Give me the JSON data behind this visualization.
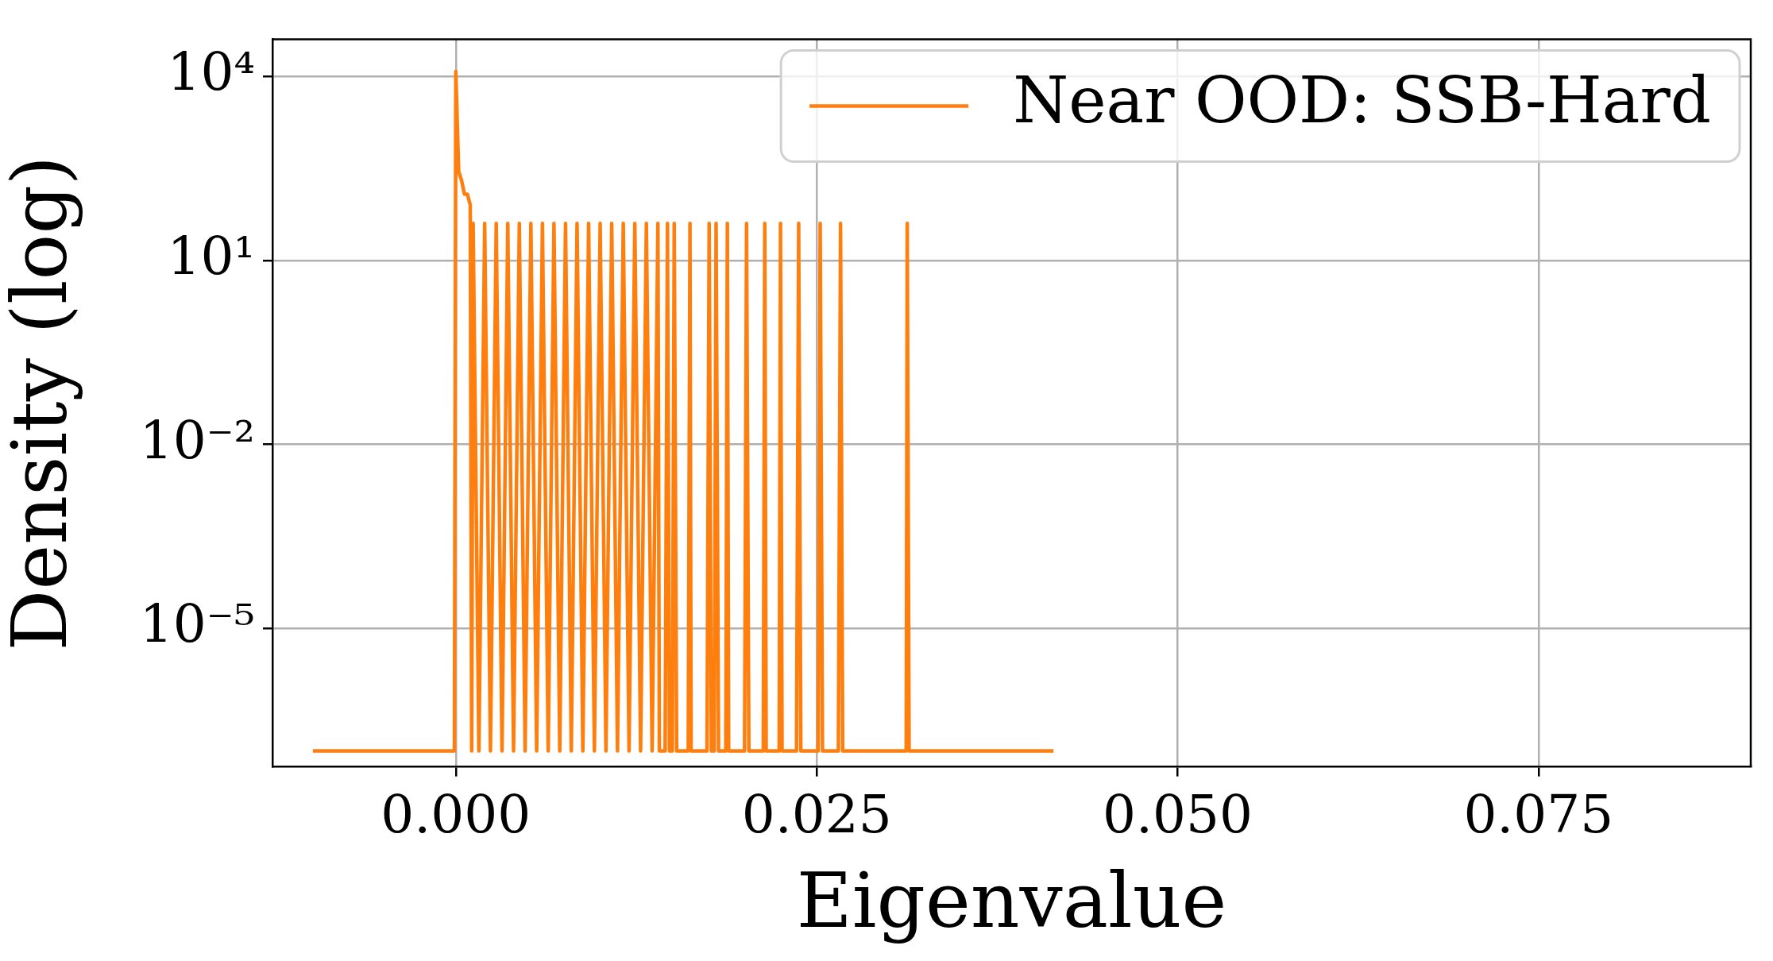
{
  "chart_data": {
    "type": "line",
    "xlabel": "Eigenvalue",
    "ylabel": "Density (log)",
    "log": true,
    "grid": true,
    "legend": "top right",
    "marker": "none",
    "line_style": "solid",
    "xlim": [
      -0.0127,
      0.0897
    ],
    "ylim": [
      5.5e-08,
      40000
    ],
    "xticks": [
      {
        "value": 0,
        "label": "0.000"
      },
      {
        "value": 0.025,
        "label": "0.025"
      },
      {
        "value": 0.05,
        "label": "0.050"
      },
      {
        "value": 0.075,
        "label": "0.075"
      }
    ],
    "yticks": [
      {
        "value": 1e-05,
        "label": "10⁻⁵"
      },
      {
        "value": 0.01,
        "label": "10⁻²"
      },
      {
        "value": 10,
        "label": "10¹"
      },
      {
        "value": 10000,
        "label": "10⁴"
      }
    ],
    "series": [
      {
        "name": "Near OOD: SSB-Hard",
        "color": "#ff7f0e",
        "x": [
          -0.0099,
          -0.0001,
          0,
          0.0002,
          0.0004,
          0.0006,
          0.0008,
          0.001,
          0.0011,
          0.0012,
          0.0016,
          0.002,
          0.0024,
          0.0028,
          0.0032,
          0.0036,
          0.004,
          0.0044,
          0.0048,
          0.0052,
          0.0056,
          0.006,
          0.0064,
          0.0068,
          0.0072,
          0.0076,
          0.008,
          0.0084,
          0.0088,
          0.0092,
          0.0096,
          0.01,
          0.0104,
          0.0108,
          0.0112,
          0.0116,
          0.012,
          0.0124,
          0.0128,
          0.0132,
          0.0136,
          0.014,
          0.0141,
          0.0145,
          0.01466,
          0.0148,
          0.015,
          0.01513,
          0.0153,
          0.0161,
          0.01622,
          0.0163,
          0.0174,
          0.01755,
          0.0177,
          0.0179,
          0.01803,
          0.0182,
          0.0187,
          0.01881,
          0.0189,
          0.02,
          0.02014,
          0.0203,
          0.0213,
          0.0214,
          0.0215,
          0.0224,
          0.02249,
          0.0226,
          0.0236,
          0.02375,
          0.0239,
          0.0251,
          0.02524,
          0.0254,
          0.0265,
          0.02665,
          0.0268,
          0.0312,
          0.03127,
          0.0314,
          0.0414
        ],
        "values": [
          1e-07,
          1e-07,
          12000,
          280,
          200,
          120,
          120,
          80,
          1e-07,
          40,
          1e-07,
          40,
          1e-07,
          40,
          1e-07,
          40,
          1e-07,
          40,
          1e-07,
          40,
          1e-07,
          40,
          1e-07,
          40,
          1e-07,
          40,
          1e-07,
          40,
          1e-07,
          40,
          1e-07,
          40,
          1e-07,
          40,
          1e-07,
          40,
          1e-07,
          40,
          1e-07,
          40,
          1e-07,
          40,
          1e-07,
          1e-07,
          40,
          1e-07,
          1e-07,
          40,
          1e-07,
          1e-07,
          40,
          1e-07,
          1e-07,
          40,
          1e-07,
          1e-07,
          40,
          1e-07,
          1e-07,
          40,
          1e-07,
          1e-07,
          40,
          1e-07,
          1e-07,
          40,
          1e-07,
          1e-07,
          40,
          1e-07,
          1e-07,
          40,
          1e-07,
          1e-07,
          40,
          1e-07,
          1e-07,
          40,
          1e-07,
          1e-07,
          40,
          1e-07,
          1e-07
        ]
      }
    ]
  }
}
